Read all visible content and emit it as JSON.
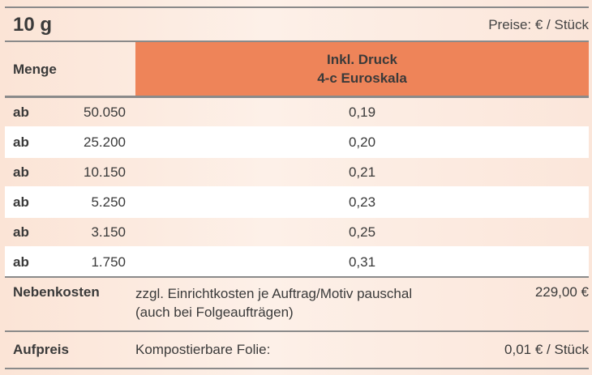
{
  "header": {
    "title": "10 g",
    "price_note": "Preise: € / Stück"
  },
  "table": {
    "col_quantity": "Menge",
    "col_price_line1": "Inkl. Druck",
    "col_price_line2": "4-c Euroskala",
    "rows": [
      {
        "prefix": "ab",
        "quantity": "50.050",
        "price": "0,19"
      },
      {
        "prefix": "ab",
        "quantity": "25.200",
        "price": "0,20"
      },
      {
        "prefix": "ab",
        "quantity": "10.150",
        "price": "0,21"
      },
      {
        "prefix": "ab",
        "quantity": "5.250",
        "price": "0,23"
      },
      {
        "prefix": "ab",
        "quantity": "3.150",
        "price": "0,25"
      },
      {
        "prefix": "ab",
        "quantity": "1.750",
        "price": "0,31"
      }
    ]
  },
  "nebenkosten": {
    "label": "Nebenkosten",
    "description_line1": "zzgl. Einrichtkosten je Auftrag/Motiv pauschal",
    "description_line2": "(auch bei Folgeaufträgen)",
    "amount": "229,00 €"
  },
  "aufpreis": {
    "label": "Aufpreis",
    "description": "Kompostierbare Folie:",
    "amount": "0,01 € / Stück"
  },
  "colors": {
    "header_accent": "#ee8459",
    "background": "#fbe4d6",
    "row_light": "#ffffff"
  }
}
